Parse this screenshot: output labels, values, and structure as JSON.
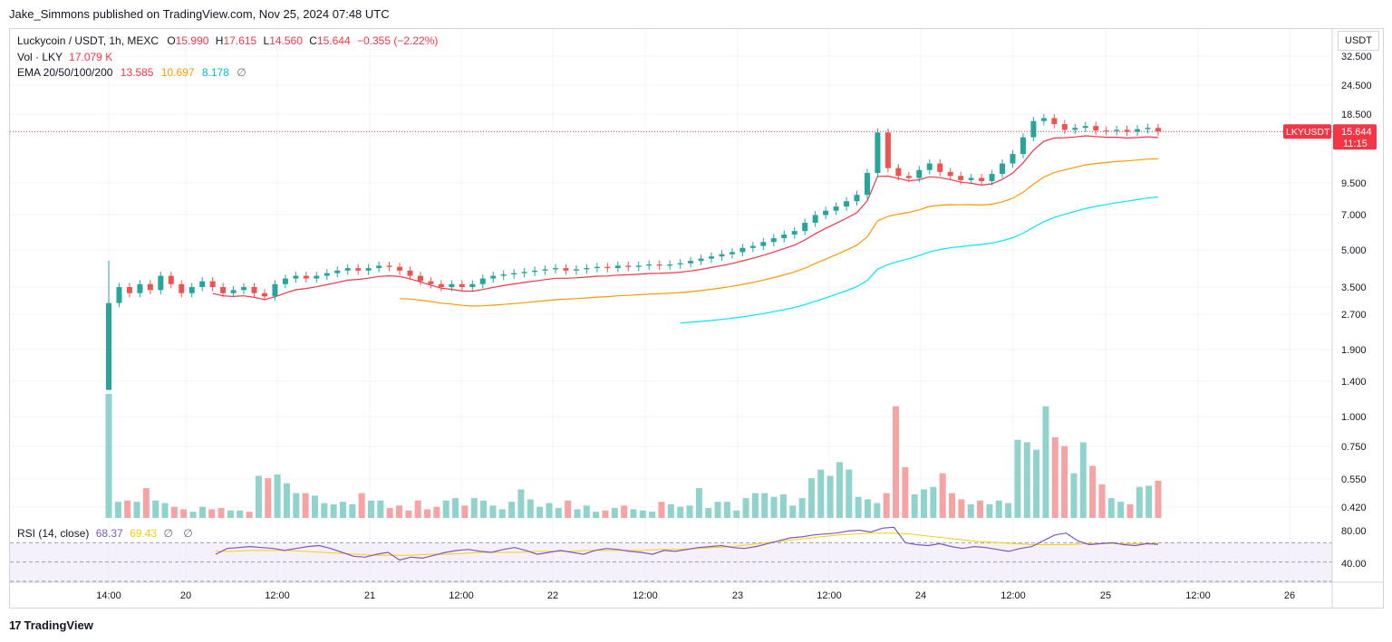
{
  "publisher_line": "Jake_Simmons published on TradingView.com, Nov 25, 2024 07:48 UTC",
  "brand": "TradingView",
  "legend": {
    "symbol": "Luckycoin / USDT, 1h, MEXC",
    "o_label": "O",
    "o_val": "15.990",
    "h_label": "H",
    "h_val": "17.615",
    "l_label": "L",
    "l_val": "14.560",
    "c_label": "C",
    "c_val": "15.644",
    "change": "−0.355 (−2.22%)",
    "vol_label": "Vol · LKY",
    "vol_val": "17.079 K",
    "ema_label": "EMA 20/50/100/200",
    "ema20": "13.585",
    "ema50": "10.697",
    "ema100": "8.178",
    "ema200": "∅",
    "eye_icon": "eye-icon"
  },
  "rsi_legend": {
    "label": "RSI (14, close)",
    "rsi": "68.37",
    "ma": "69.43",
    "n1": "∅",
    "n2": "∅"
  },
  "price_axis": {
    "unit": "USDT",
    "ticks": [
      "32.500",
      "24.500",
      "18.500",
      "9.500",
      "7.000",
      "5.000",
      "3.500",
      "2.700",
      "1.900",
      "1.400",
      "1.000",
      "0.750",
      "0.550",
      "0.420"
    ],
    "rsi_ticks": [
      "80.00",
      "40.00"
    ],
    "last_label": "LKYUSDT",
    "last_price": "15.644",
    "countdown": "11:15"
  },
  "time_axis": {
    "labels": [
      "14:00",
      "20",
      "12:00",
      "21",
      "12:00",
      "22",
      "12:00",
      "23",
      "12:00",
      "24",
      "12:00",
      "25",
      "12:00",
      "26"
    ]
  },
  "colors": {
    "up": "#26a69a",
    "down": "#ef5350",
    "vol_up": "#8fd3cc",
    "vol_down": "#f5a3a3",
    "ema20": "#f23645",
    "ema50": "#ff9800",
    "ema100": "#00e5ff",
    "rsi": "#7e57c2",
    "rsi_ma": "#f5d300"
  },
  "chart_data": [
    {
      "type": "candlestick",
      "title": "Luckycoin / USDT, 1h, MEXC",
      "xlabel": "",
      "ylabel": "USDT",
      "y_scale": "log",
      "ylim": [
        2.5,
        34
      ],
      "x_range": [
        "Nov 19 12:00",
        "Nov 26 12:00"
      ],
      "last_close": 15.644,
      "grid": true,
      "note_series": "approximate closes per bar read from gridlines, Nov 19 14:00 to Nov 25 07:00 (1h bars, sampled)",
      "closes": [
        1.3,
        3.5,
        3.3,
        3.6,
        3.4,
        3.9,
        3.6,
        3.3,
        3.5,
        3.7,
        3.5,
        3.3,
        3.4,
        3.5,
        3.3,
        3.2,
        3.6,
        3.8,
        3.9,
        3.8,
        3.9,
        4.0,
        4.1,
        4.2,
        4.1,
        4.2,
        4.3,
        4.25,
        4.1,
        3.9,
        3.7,
        3.6,
        3.5,
        3.6,
        3.5,
        3.6,
        3.8,
        3.9,
        3.95,
        4.0,
        4.05,
        4.1,
        4.15,
        4.2,
        4.1,
        4.15,
        4.2,
        4.25,
        4.2,
        4.3,
        4.25,
        4.3,
        4.35,
        4.3,
        4.35,
        4.4,
        4.5,
        4.6,
        4.7,
        4.8,
        4.9,
        5.1,
        5.2,
        5.4,
        5.6,
        5.8,
        6.0,
        6.5,
        7.0,
        7.3,
        7.6,
        8.0,
        8.5,
        10.5,
        15.5,
        11.0,
        10.2,
        10.0,
        10.8,
        11.5,
        10.6,
        10.2,
        9.8,
        10.0,
        9.7,
        10.4,
        11.5,
        12.6,
        14.8,
        17.3,
        17.8,
        16.8,
        15.9,
        16.2,
        16.5,
        15.8,
        15.7,
        15.9,
        15.6,
        16.0,
        16.2,
        15.644
      ]
    },
    {
      "type": "line",
      "series": [
        {
          "name": "EMA 20",
          "last": 13.585
        },
        {
          "name": "EMA 50",
          "last": 10.697
        },
        {
          "name": "EMA 100",
          "last": 8.178
        }
      ]
    },
    {
      "type": "bar",
      "title": "Vol · LKY",
      "last": "17.079 K",
      "note_series": "relative volume heights (0-1) per bar, sampled",
      "values": [
        1.0,
        0.13,
        0.14,
        0.13,
        0.24,
        0.14,
        0.12,
        0.09,
        0.07,
        0.05,
        0.09,
        0.07,
        0.08,
        0.06,
        0.06,
        0.05,
        0.34,
        0.32,
        0.35,
        0.28,
        0.2,
        0.2,
        0.18,
        0.12,
        0.11,
        0.13,
        0.11,
        0.2,
        0.14,
        0.14,
        0.08,
        0.1,
        0.06,
        0.14,
        0.07,
        0.09,
        0.14,
        0.16,
        0.1,
        0.16,
        0.14,
        0.1,
        0.07,
        0.13,
        0.23,
        0.15,
        0.09,
        0.12,
        0.08,
        0.14,
        0.07,
        0.1,
        0.05,
        0.06,
        0.08,
        0.1,
        0.07,
        0.06,
        0.05,
        0.13,
        0.11,
        0.09,
        0.1,
        0.24,
        0.08,
        0.13,
        0.13,
        0.06,
        0.16,
        0.2,
        0.2,
        0.17,
        0.19,
        0.1,
        0.16,
        0.32,
        0.39,
        0.34,
        0.45,
        0.39,
        0.17,
        0.15,
        0.12,
        0.2,
        0.9,
        0.41,
        0.19,
        0.23,
        0.25,
        0.36,
        0.2,
        0.15,
        0.11,
        0.14,
        0.11,
        0.14,
        0.12,
        0.63,
        0.61,
        0.55,
        0.9,
        0.65,
        0.58,
        0.36,
        0.61,
        0.42,
        0.27,
        0.16,
        0.13,
        0.11,
        0.25,
        0.26,
        0.3
      ]
    },
    {
      "type": "line",
      "title": "RSI (14, close)",
      "series": [
        {
          "name": "RSI",
          "last": 68.37
        },
        {
          "name": "MA",
          "last": 69.43
        }
      ],
      "ylim": [
        30,
        90
      ],
      "note_series": "approximate RSI values per bar, sampled",
      "rsi_values": [
        58,
        64,
        65,
        66,
        65,
        64,
        62,
        64,
        66,
        67,
        64,
        60,
        56,
        55,
        58,
        60,
        52,
        55,
        54,
        57,
        60,
        62,
        63,
        61,
        60,
        63,
        65,
        62,
        58,
        60,
        62,
        60,
        58,
        62,
        64,
        63,
        61,
        60,
        58,
        62,
        61,
        63,
        65,
        66,
        67,
        65,
        64,
        66,
        69,
        72,
        75,
        76,
        78,
        79,
        80,
        82,
        83,
        81,
        85,
        86,
        70,
        68,
        67,
        69,
        66,
        64,
        66,
        65,
        63,
        61,
        64,
        66,
        72,
        78,
        80,
        72,
        68,
        69,
        70,
        68,
        67,
        69,
        68.37
      ],
      "ma_values": [
        61,
        61,
        62,
        62,
        62,
        61,
        60,
        59,
        58,
        57,
        57,
        57,
        58,
        58,
        59,
        60,
        60,
        60,
        61,
        61,
        61,
        62,
        62,
        62,
        62,
        63,
        63,
        64,
        65,
        66,
        68,
        70,
        72,
        74,
        76,
        78,
        79,
        80,
        80,
        79,
        77,
        75,
        73,
        71,
        70,
        69,
        68,
        68,
        68,
        69,
        69,
        69,
        69,
        69.43
      ]
    }
  ]
}
